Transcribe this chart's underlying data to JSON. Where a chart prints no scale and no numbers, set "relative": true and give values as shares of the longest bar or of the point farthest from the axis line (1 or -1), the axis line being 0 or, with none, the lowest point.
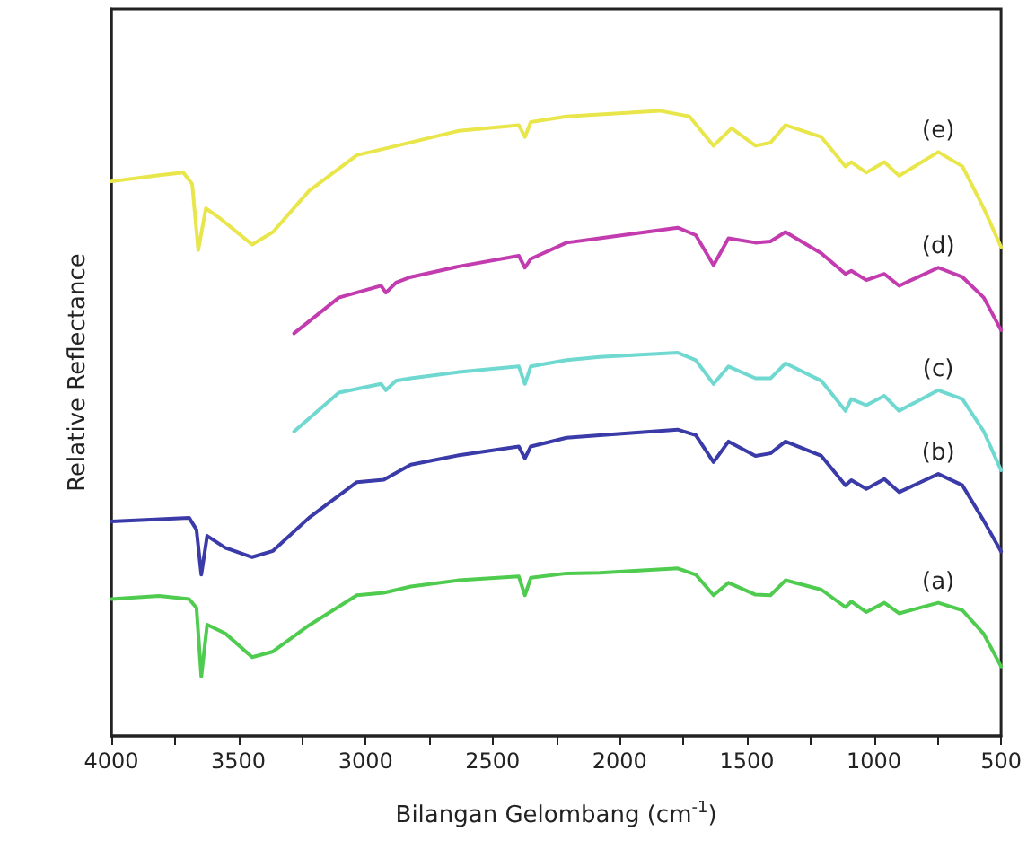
{
  "chart_data": {
    "type": "line",
    "relative": true,
    "xlabel": "Bilangan Gelombang (cm$^{-1}$)",
    "ylabel": "Relative Reflectance",
    "xlim": [
      4000,
      500
    ],
    "xticks": [
      4000,
      {
        "value": 3750,
        "label": null
      },
      3500,
      {
        "value": 3250,
        "label": null
      },
      3000,
      {
        "value": 2750,
        "label": null
      },
      2500,
      {
        "value": 2250,
        "label": null
      },
      2000,
      {
        "value": 1750,
        "label": null
      },
      1500,
      {
        "value": 1250,
        "label": null
      },
      1000,
      {
        "value": 750,
        "label": null
      },
      500
    ],
    "tick_labels": "x",
    "grid": false,
    "legend": false,
    "marker": "none",
    "line_style": "solid",
    "series": [
      {
        "name": "(a)",
        "color": "#4fcc4f",
        "x": [
          4000,
          3812,
          3694,
          3665,
          3646,
          3623,
          3552,
          3446,
          3364,
          3222,
          3034,
          2928,
          2822,
          2633,
          2397,
          2373,
          2350,
          2209,
          2079,
          1772,
          1701,
          1631,
          1572,
          1466,
          1407,
          1348,
          1207,
          1112,
          1089,
          1030,
          959,
          901,
          747,
          652,
          568,
          500
        ],
        "values": [
          0.219,
          0.224,
          0.219,
          0.205,
          0.095,
          0.178,
          0.164,
          0.126,
          0.135,
          0.177,
          0.225,
          0.229,
          0.239,
          0.249,
          0.255,
          0.225,
          0.253,
          0.26,
          0.261,
          0.268,
          0.258,
          0.225,
          0.245,
          0.226,
          0.225,
          0.249,
          0.234,
          0.206,
          0.215,
          0.198,
          0.213,
          0.196,
          0.213,
          0.201,
          0.163,
          0.111
        ]
      },
      {
        "name": "(b)",
        "color": "#3a3aa8",
        "x": [
          4000,
          3694,
          3665,
          3646,
          3623,
          3552,
          3446,
          3364,
          3222,
          3034,
          2928,
          2822,
          2633,
          2397,
          2373,
          2350,
          2209,
          2079,
          1772,
          1701,
          1631,
          1572,
          1466,
          1407,
          1348,
          1207,
          1112,
          1089,
          1030,
          959,
          901,
          747,
          652,
          568,
          500
        ],
        "values": [
          0.343,
          0.349,
          0.33,
          0.258,
          0.32,
          0.301,
          0.286,
          0.296,
          0.349,
          0.406,
          0.41,
          0.434,
          0.449,
          0.463,
          0.444,
          0.463,
          0.477,
          0.481,
          0.49,
          0.481,
          0.438,
          0.471,
          0.448,
          0.452,
          0.471,
          0.448,
          0.401,
          0.409,
          0.395,
          0.411,
          0.39,
          0.419,
          0.401,
          0.344,
          0.295
        ]
      },
      {
        "name": "(c)",
        "color": "#6fd8d0",
        "x": [
          3281,
          3105,
          2939,
          2920,
          2880,
          2822,
          2633,
          2397,
          2373,
          2350,
          2209,
          2079,
          1772,
          1701,
          1631,
          1572,
          1466,
          1407,
          1348,
          1207,
          1112,
          1089,
          1030,
          959,
          901,
          747,
          652,
          568,
          500
        ],
        "values": [
          0.487,
          0.549,
          0.563,
          0.553,
          0.568,
          0.572,
          0.582,
          0.591,
          0.563,
          0.591,
          0.601,
          0.606,
          0.613,
          0.601,
          0.563,
          0.591,
          0.572,
          0.572,
          0.596,
          0.568,
          0.52,
          0.539,
          0.529,
          0.544,
          0.52,
          0.553,
          0.539,
          0.487,
          0.425
        ]
      },
      {
        "name": "(d)",
        "color": "#c23cb0",
        "x": [
          3281,
          3105,
          2939,
          2920,
          2880,
          2822,
          2633,
          2397,
          2373,
          2350,
          2209,
          2079,
          1772,
          1701,
          1631,
          1572,
          1466,
          1407,
          1348,
          1207,
          1112,
          1089,
          1030,
          959,
          901,
          747,
          652,
          568,
          500
        ],
        "values": [
          0.644,
          0.701,
          0.72,
          0.709,
          0.725,
          0.734,
          0.751,
          0.768,
          0.749,
          0.763,
          0.789,
          0.796,
          0.813,
          0.801,
          0.753,
          0.796,
          0.789,
          0.791,
          0.806,
          0.772,
          0.739,
          0.744,
          0.729,
          0.739,
          0.72,
          0.749,
          0.734,
          0.701,
          0.649
        ]
      },
      {
        "name": "(e)",
        "color": "#e8e64a",
        "x": [
          4000,
          3812,
          3717,
          3682,
          3658,
          3628,
          3576,
          3446,
          3364,
          3222,
          3034,
          2928,
          2633,
          2397,
          2373,
          2350,
          2209,
          1843,
          1726,
          1631,
          1560,
          1466,
          1407,
          1348,
          1207,
          1112,
          1089,
          1030,
          959,
          901,
          747,
          652,
          568,
          500
        ],
        "values": [
          0.887,
          0.897,
          0.901,
          0.883,
          0.777,
          0.844,
          0.829,
          0.786,
          0.806,
          0.872,
          0.929,
          0.939,
          0.968,
          0.977,
          0.958,
          0.982,
          0.991,
          1.0,
          0.991,
          0.944,
          0.972,
          0.944,
          0.949,
          0.977,
          0.958,
          0.911,
          0.918,
          0.901,
          0.918,
          0.896,
          0.934,
          0.911,
          0.844,
          0.782
        ]
      }
    ]
  }
}
